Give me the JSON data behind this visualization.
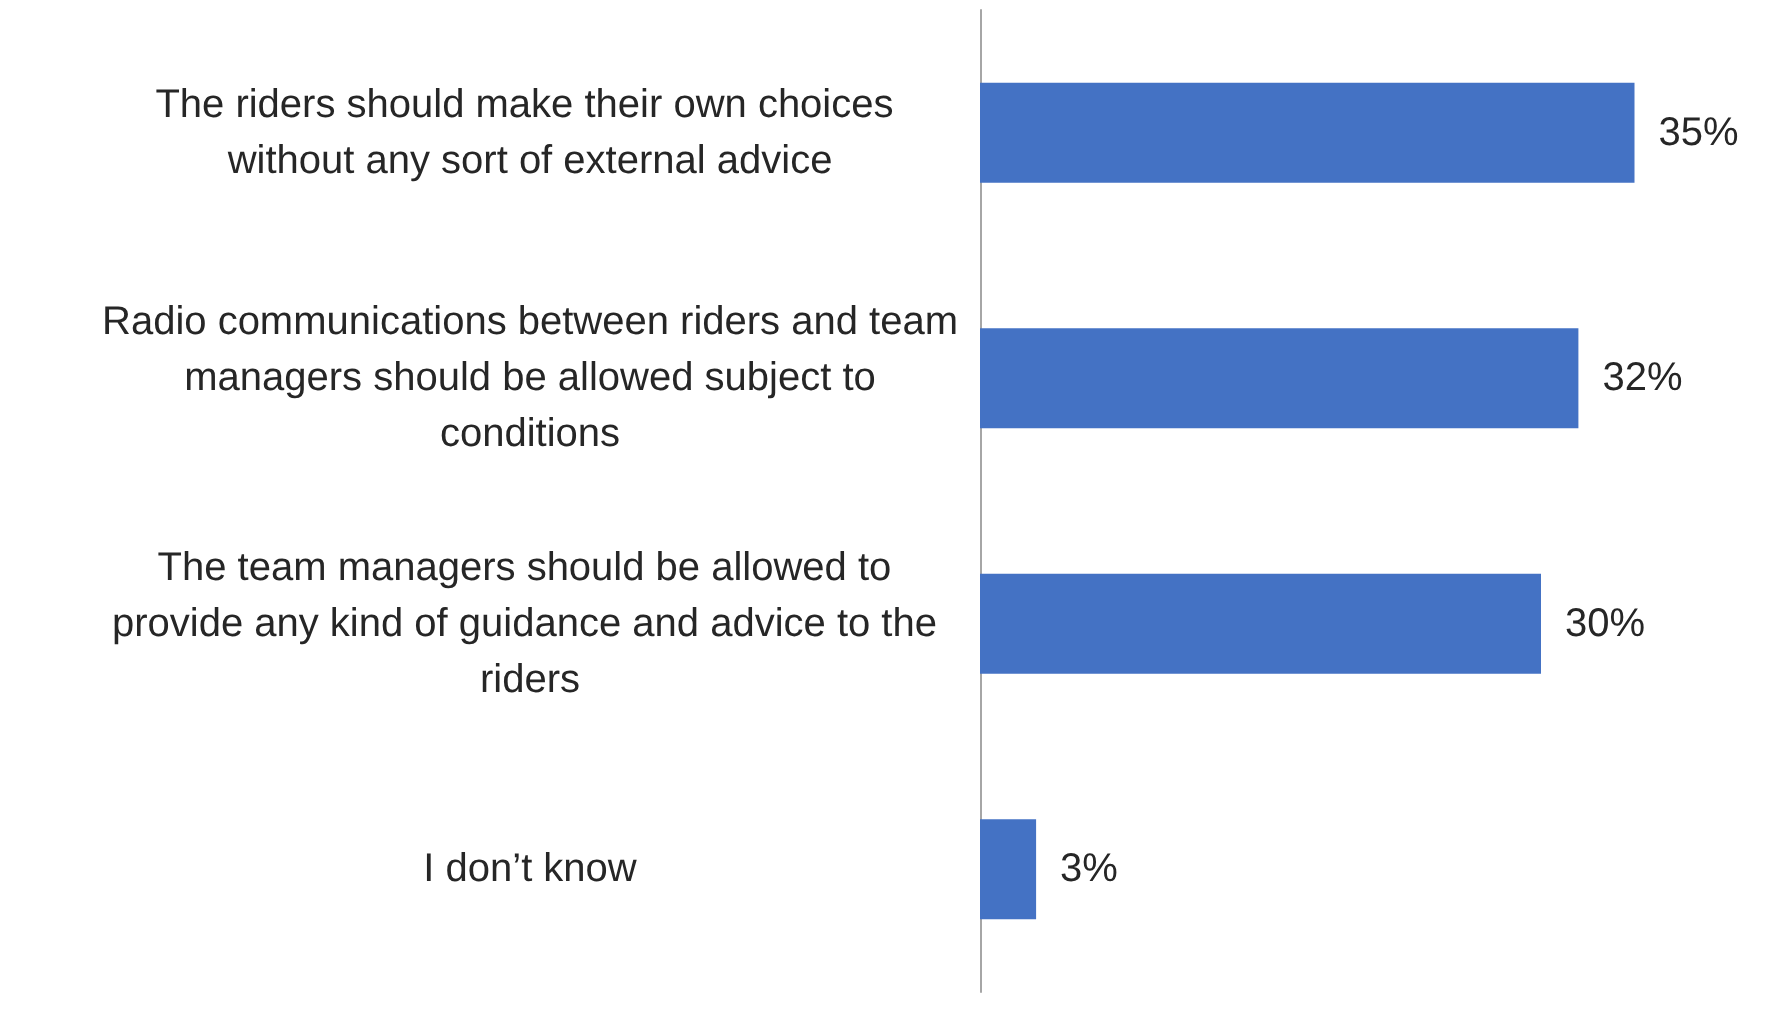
{
  "chart_data": {
    "type": "bar",
    "orientation": "horizontal",
    "categories": [
      "The riders should make their own choices without any sort of external advice",
      "Radio communications between riders and team managers should be allowed subject to conditions",
      "The team managers should be allowed to provide any kind of guidance and advice to the riders",
      "I don’t know"
    ],
    "values": [
      35,
      32,
      30,
      3
    ],
    "color": "#4472c4",
    "value_labels": [
      "35%",
      "32%",
      "30%",
      "3%"
    ]
  }
}
